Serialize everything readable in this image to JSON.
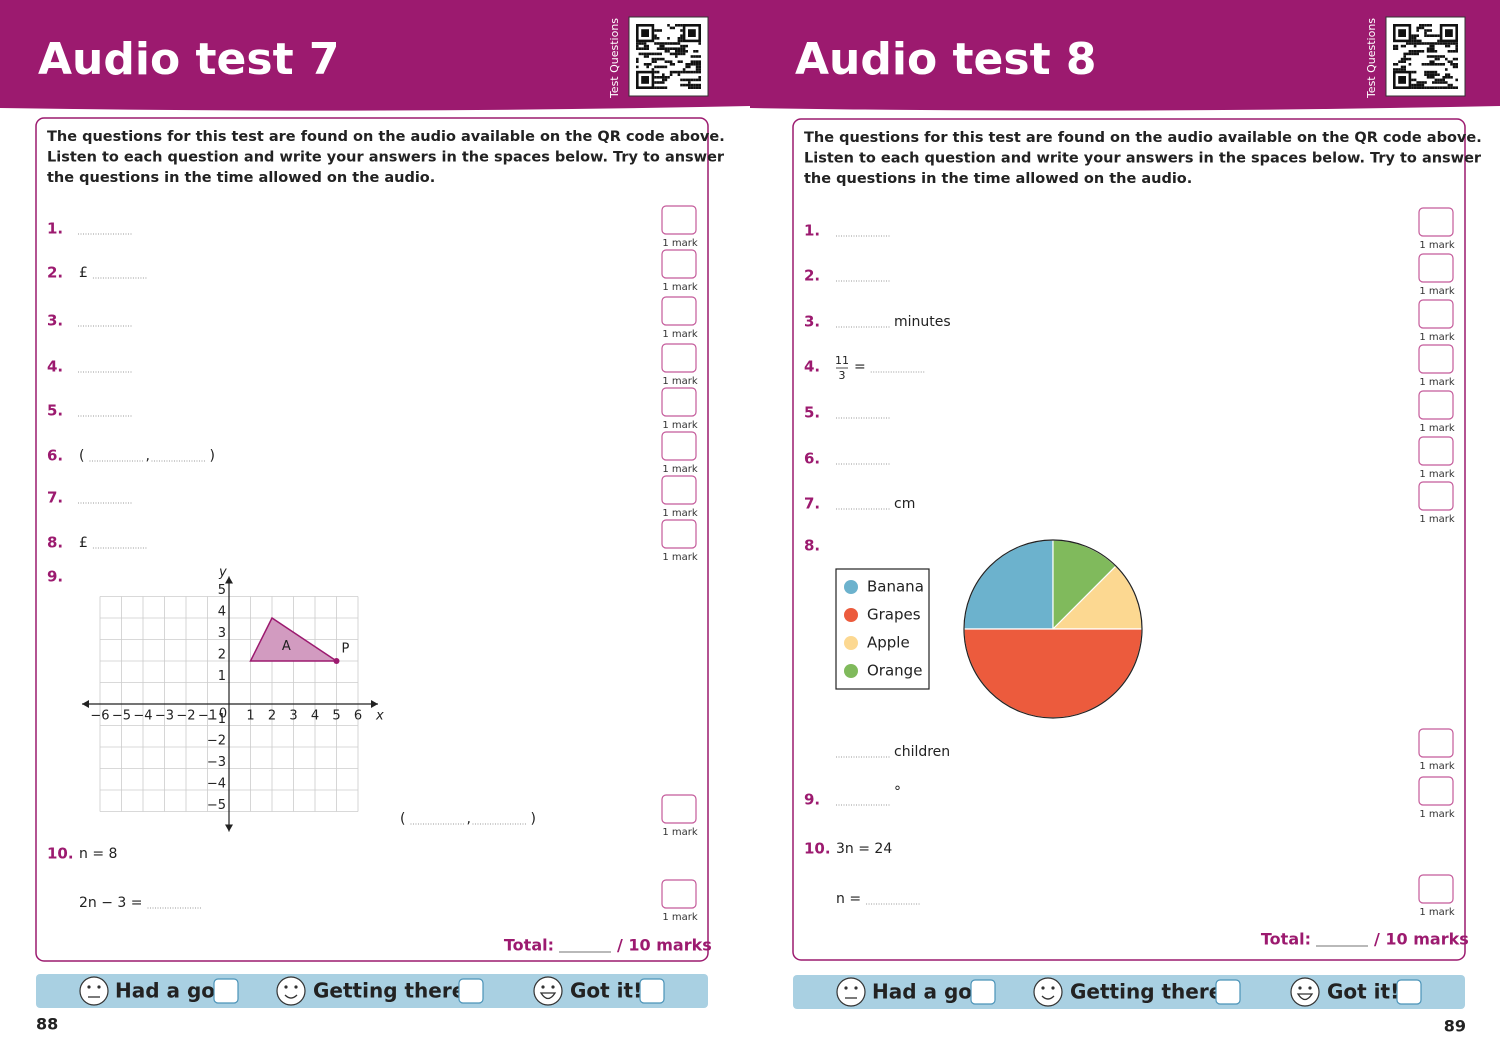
{
  "pages": [
    {
      "title": "Audio test 7",
      "side_label": "Test Questions",
      "intro": [
        "The questions for this test are found on the audio available on the QR code above.",
        "Listen to each question and write your answers in the spaces below. Try to answer",
        "the questions in the time allowed on the audio."
      ],
      "questions": [
        {
          "number": "1.",
          "mark": "1 mark"
        },
        {
          "number": "2.",
          "before": "£",
          "mark": "1 mark"
        },
        {
          "number": "3.",
          "mark": "1 mark"
        },
        {
          "number": "4.",
          "mark": "1 mark"
        },
        {
          "number": "5.",
          "mark": "1 mark"
        },
        {
          "number": "6.",
          "before": "(",
          "between": ",",
          "after": ")",
          "mark": "1 mark"
        },
        {
          "number": "7.",
          "mark": "1 mark"
        },
        {
          "number": "8.",
          "before": "£",
          "mark": "1 mark"
        },
        {
          "number": "9.",
          "before": "(",
          "between": ",",
          "after": ")",
          "mark": "1 mark",
          "grid": {
            "x_axis_label": "x",
            "y_axis_label": "y",
            "origin_label": "0",
            "xlim": [
              -6,
              6
            ],
            "ylim": [
              -5,
              5
            ],
            "x_ticks": [
              {
                "value": -6,
                "label": "−6"
              },
              {
                "value": -5,
                "label": "−5"
              },
              {
                "value": -4,
                "label": "−4"
              },
              {
                "value": -3,
                "label": "−3"
              },
              {
                "value": -2,
                "label": "−2"
              },
              {
                "value": -1,
                "label": "−1"
              },
              1,
              2,
              3,
              4,
              5,
              6
            ],
            "y_ticks": [
              5,
              4,
              3,
              2,
              1,
              {
                "value": -1,
                "label": "−1"
              },
              {
                "value": -2,
                "label": "−2"
              },
              {
                "value": -3,
                "label": "−3"
              },
              {
                "value": -4,
                "label": "−4"
              },
              {
                "value": -5,
                "label": "−5"
              }
            ],
            "shape": {
              "label": "A",
              "vertices": [
                [
                  1,
                  2
                ],
                [
                  2,
                  4
                ],
                [
                  5,
                  2
                ]
              ]
            },
            "point": {
              "label": "P",
              "x": 5,
              "y": 2
            }
          }
        },
        {
          "number": "10.",
          "text": "n = 8",
          "before": "2n − 3 =",
          "mark": "1 mark"
        }
      ],
      "total": {
        "label": "Total:",
        "marks": "/ 10 marks"
      },
      "footer": [
        "Had a go",
        "Getting there",
        "Got it!"
      ],
      "page_number": "88"
    },
    {
      "title": "Audio test 8",
      "side_label": "Test Questions",
      "intro": [
        "The questions for this test are found on the audio available on the QR code above.",
        "Listen to each question and write your answers in the spaces below. Try to answer",
        "the questions in the time allowed on the audio."
      ],
      "questions": [
        {
          "number": "1.",
          "mark": "1 mark"
        },
        {
          "number": "2.",
          "mark": "1 mark"
        },
        {
          "number": "3.",
          "after": "minutes",
          "mark": "1 mark"
        },
        {
          "number": "4.",
          "fraction": {
            "numerator": "11",
            "denominator": "3"
          },
          "before": "=",
          "mark": "1 mark"
        },
        {
          "number": "5.",
          "mark": "1 mark"
        },
        {
          "number": "6.",
          "mark": "1 mark"
        },
        {
          "number": "7.",
          "after": "cm",
          "mark": "1 mark"
        },
        {
          "number": "8.",
          "after": "children",
          "mark": "1 mark",
          "chart": {
            "type": "pie",
            "series": [
              {
                "name": "Banana",
                "color": "#6cb2cd",
                "value": 25
              },
              {
                "name": "Grapes",
                "color": "#ec5b3d",
                "value": 50
              },
              {
                "name": "Apple",
                "color": "#fcd891",
                "value": 12.5
              },
              {
                "name": "Orange",
                "color": "#80ba5c",
                "value": 12.5
              }
            ]
          }
        },
        {
          "number": "9.",
          "after": "°",
          "mark": "1 mark"
        },
        {
          "number": "10.",
          "text": "3n = 24",
          "before": "n =",
          "mark": "1 mark"
        }
      ],
      "total": {
        "label": "Total:",
        "marks": "/ 10 marks"
      },
      "footer": [
        "Had a go",
        "Getting there",
        "Got it!"
      ],
      "page_number": "89"
    }
  ]
}
